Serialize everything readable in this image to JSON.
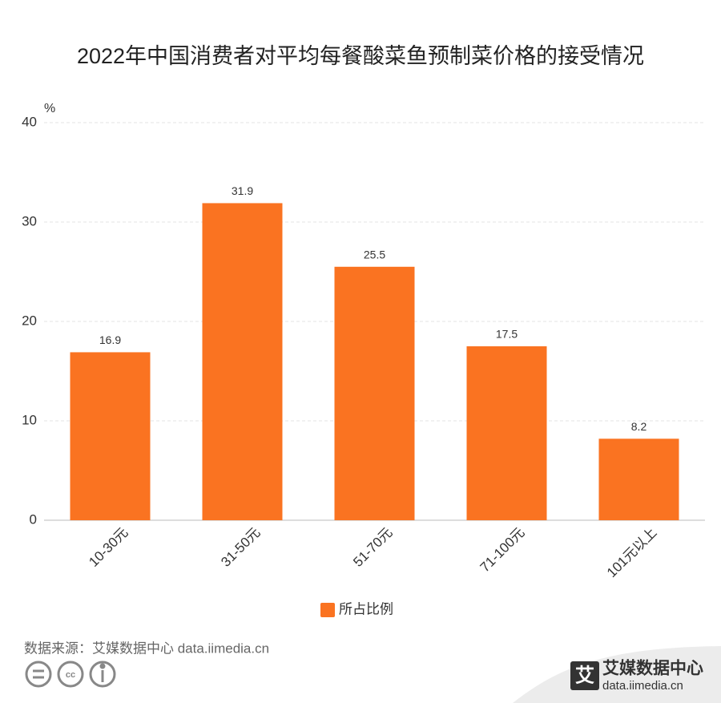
{
  "chart_data": {
    "type": "bar",
    "title": "2022年中国消费者对平均每餐酸菜鱼预制菜价格的接受情况",
    "y_label": "%",
    "categories": [
      "10-30元",
      "31-50元",
      "51-70元",
      "71-100元",
      "101元以上"
    ],
    "series": [
      {
        "name": "所占比例",
        "color": "#fa7321",
        "values": [
          16.9,
          31.9,
          25.5,
          17.5,
          8.2
        ]
      }
    ],
    "ylim": [
      0,
      40
    ],
    "yticks": [
      0,
      10,
      20,
      30,
      40
    ],
    "grid": true
  },
  "footer": {
    "source": "数据来源：艾媒数据中心 data.iimedia.cn",
    "logo_icon": "艾",
    "logo_name": "艾媒数据中心",
    "logo_url": "data.iimedia.cn"
  }
}
